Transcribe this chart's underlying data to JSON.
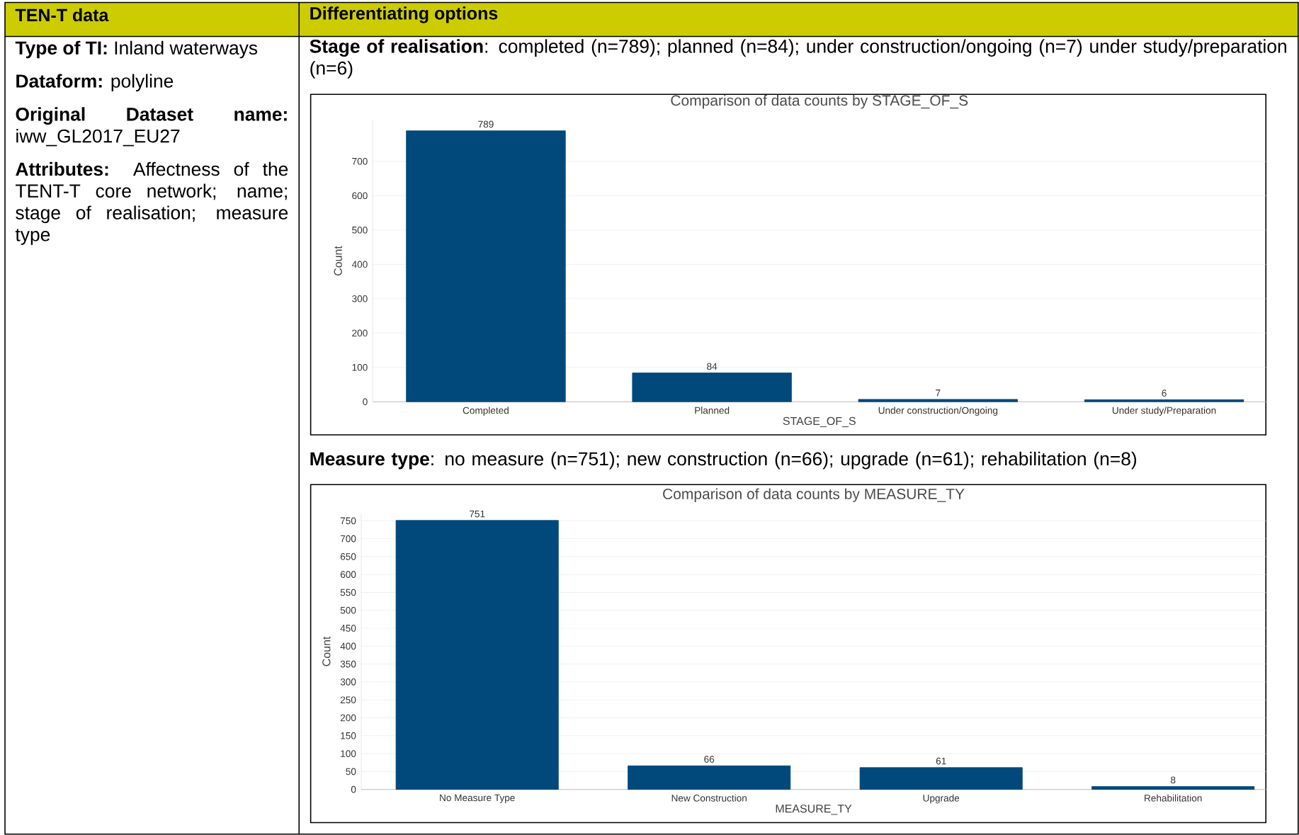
{
  "chart_data": [
    {
      "type": "other",
      "title": "TEN-T data",
      "annotations": [
        "**Type of TI:** Inland waterways",
        "**Dataform:** polyline",
        "**Original Dataset name:** iww_GL2017_EU27",
        "**Attributes:** Affectness of the TENT-T core network; name; stage of realisation; measure type"
      ]
    },
    {
      "type": "bar",
      "title": "Comparison of data counts by STAGE_OF_S",
      "xlabel": "STAGE_OF_S",
      "ylabel": "Count",
      "categories": [
        "Completed",
        "Planned",
        "Under construction/Ongoing",
        "Under study/Preparation"
      ],
      "values": [
        789,
        84,
        7,
        6
      ],
      "color": "#01497a",
      "data_labels": true,
      "ylim": [
        0,
        820
      ],
      "yticks": [
        0,
        100,
        200,
        300,
        400,
        500,
        600,
        700
      ],
      "grid": "y",
      "annotations": [
        "Differentiating options",
        "**Stage of realisation**: completed (n=789); planned (n=84); under construction/ongoing (n=7) under study/preparation (n=6)"
      ]
    },
    {
      "type": "bar",
      "title": "Comparison of data counts by MEASURE_TY",
      "xlabel": "MEASURE_TY",
      "ylabel": "Count",
      "categories": [
        "No Measure Type",
        "New Construction",
        "Upgrade",
        "Rehabilitation"
      ],
      "values": [
        751,
        66,
        61,
        8
      ],
      "color": "#01497a",
      "data_labels": true,
      "ylim": [
        0,
        770
      ],
      "yticks": [
        0,
        50,
        100,
        150,
        200,
        250,
        300,
        350,
        400,
        450,
        500,
        550,
        600,
        650,
        700,
        750
      ],
      "grid": "y",
      "annotations": [
        "**Measure type**: no measure (n=751); new construction (n=66); upgrade (n=61); rehabilitation (n=8)"
      ]
    }
  ]
}
